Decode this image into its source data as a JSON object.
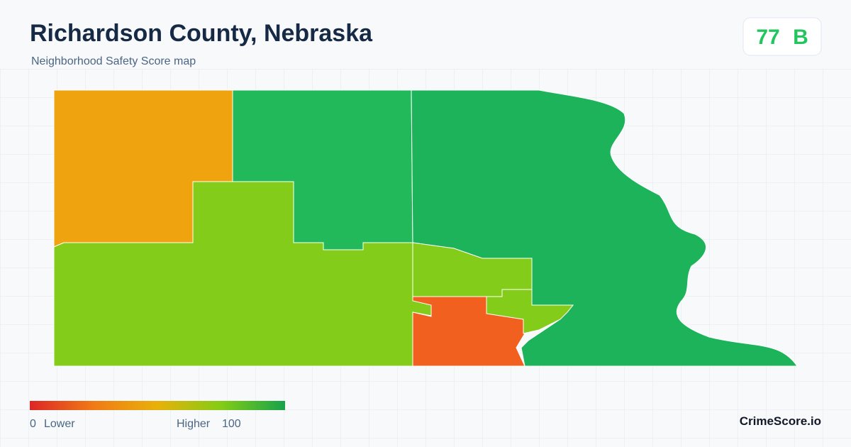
{
  "header": {
    "title": "Richardson County, Nebraska",
    "subtitle": "Neighborhood Safety Score map"
  },
  "score": {
    "value": "77",
    "grade": "B"
  },
  "legend": {
    "min": "0",
    "min_label": "Lower",
    "max_label": "Higher",
    "max": "100"
  },
  "brand": "CrimeScore.io"
}
